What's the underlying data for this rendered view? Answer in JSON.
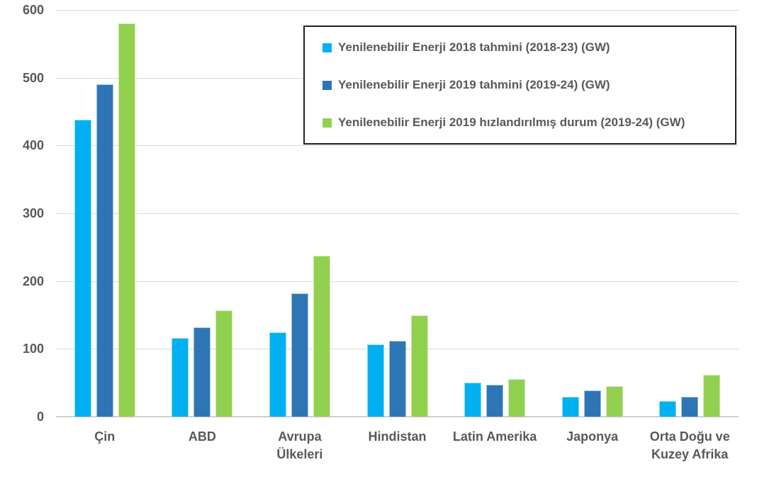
{
  "chart_data": {
    "type": "bar",
    "title": "",
    "xlabel": "",
    "ylabel": "",
    "categories": [
      "Çin",
      "ABD",
      "Avrupa Ülkeleri",
      "Hindistan",
      "Latin Amerika",
      "Japonya",
      "Orta Doğu ve Kuzey Afrika"
    ],
    "category_lines": [
      [
        "Çin"
      ],
      [
        "ABD"
      ],
      [
        "Avrupa",
        "Ülkeleri"
      ],
      [
        "Hindistan"
      ],
      [
        "Latin Amerika"
      ],
      [
        "Japonya"
      ],
      [
        "Orta Doğu ve",
        "Kuzey Afrika"
      ]
    ],
    "series": [
      {
        "name": "Yenilenebilir Enerji 2018 tahmini (2018-23) (GW)",
        "color": "#00B0F0",
        "values": [
          438,
          116,
          124,
          107,
          50,
          29,
          23
        ]
      },
      {
        "name": "Yenilenebilir Enerji 2019 tahmini (2019-24) (GW)",
        "color": "#2E75B6",
        "values": [
          490,
          132,
          182,
          112,
          47,
          39,
          29
        ]
      },
      {
        "name": "Yenilenebilir Enerji 2019 hızlandırılmış durum (2019-24) (GW)",
        "color": "#92D050",
        "values": [
          580,
          157,
          237,
          149,
          55,
          45,
          62
        ]
      }
    ],
    "y_ticks": [
      0,
      100,
      200,
      300,
      400,
      500,
      600
    ],
    "ylim": [
      0,
      600
    ],
    "grid": true,
    "legend_position": "top-right"
  },
  "styles": {
    "text_color": "#595959",
    "grid_color": "#D9D9D9",
    "axis_line_color": "#CFCFCF",
    "legend_border_color": "#1F1F1F",
    "background": "#FFFFFF"
  }
}
